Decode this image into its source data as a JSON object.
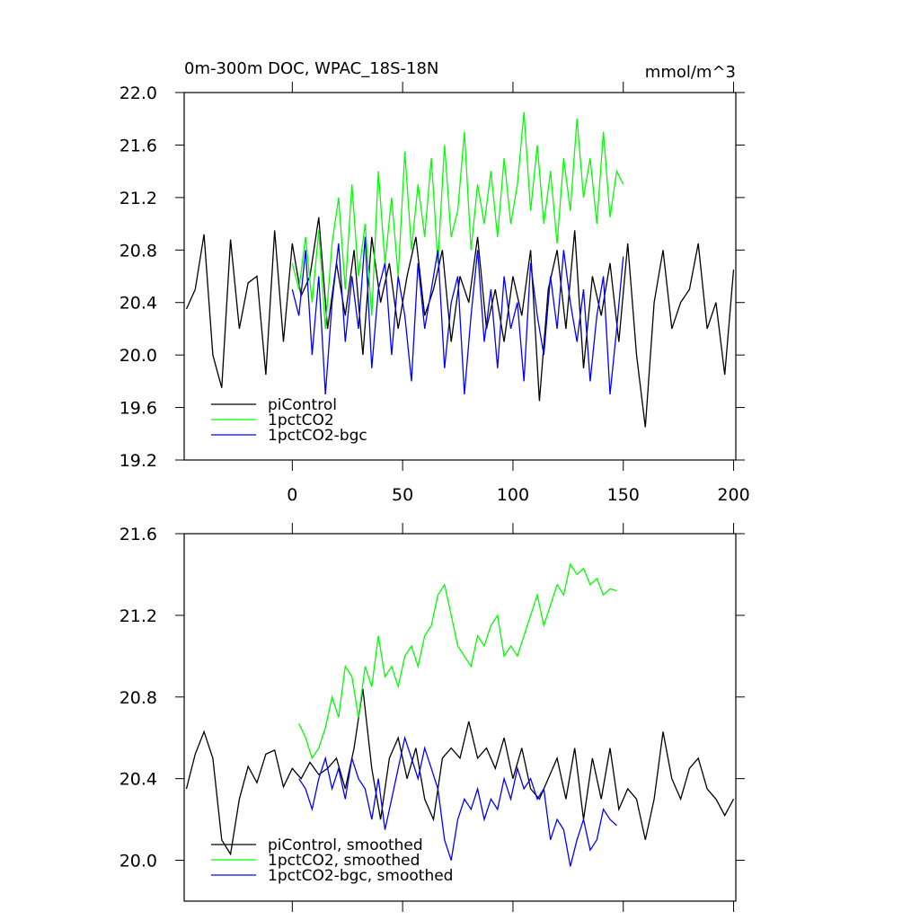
{
  "chart_data": [
    {
      "type": "line",
      "left_title": "0m-300m DOC, WPAC_18S-18N",
      "right_title": "mmol/m^3",
      "xlim": [
        -49,
        201
      ],
      "xticks": [
        0,
        50,
        100,
        150,
        200
      ],
      "ylim": [
        19.2,
        22.0
      ],
      "yticks": [
        19.2,
        19.6,
        {
          "value": 20.0,
          "label": "20.0"
        },
        20.4,
        20.8,
        21.2,
        21.6,
        {
          "value": 22.0,
          "label": "22.0"
        }
      ],
      "legend": "lower left",
      "series": [
        {
          "name": "piControl",
          "color": "#000000",
          "x": [
            -48,
            -44,
            -40,
            -36,
            -32,
            -28,
            -24,
            -20,
            -16,
            -12,
            -8,
            -4,
            0,
            4,
            8,
            12,
            16,
            20,
            24,
            28,
            32,
            36,
            40,
            44,
            48,
            52,
            56,
            60,
            64,
            68,
            72,
            76,
            80,
            84,
            88,
            92,
            96,
            100,
            104,
            108,
            112,
            116,
            120,
            124,
            128,
            132,
            136,
            140,
            144,
            148,
            152,
            156,
            160,
            164,
            168,
            172,
            176,
            180,
            184,
            188,
            192,
            196,
            200
          ],
          "values": [
            20.35,
            20.5,
            20.92,
            20.0,
            19.75,
            20.88,
            20.2,
            20.55,
            20.6,
            19.85,
            20.95,
            20.1,
            20.85,
            20.45,
            20.6,
            21.05,
            20.2,
            20.7,
            20.3,
            20.8,
            20.0,
            20.9,
            20.4,
            20.7,
            20.2,
            20.6,
            20.9,
            20.3,
            20.5,
            20.8,
            20.1,
            20.6,
            20.4,
            20.9,
            20.2,
            20.5,
            20.1,
            20.6,
            20.3,
            20.8,
            19.65,
            20.5,
            20.8,
            20.2,
            20.95,
            19.9,
            20.6,
            20.3,
            20.7,
            20.1,
            20.85,
            20.0,
            19.45,
            20.4,
            20.8,
            20.2,
            20.4,
            20.5,
            20.85,
            20.2,
            20.4,
            19.85,
            20.65
          ]
        },
        {
          "name": "1pctCO2",
          "color": "#00ff00",
          "x": [
            0,
            3,
            6,
            9,
            12,
            15,
            18,
            21,
            24,
            27,
            30,
            33,
            36,
            39,
            42,
            45,
            48,
            51,
            54,
            57,
            60,
            63,
            66,
            69,
            72,
            75,
            78,
            81,
            84,
            87,
            90,
            93,
            96,
            99,
            102,
            105,
            108,
            111,
            114,
            117,
            120,
            123,
            126,
            129,
            132,
            135,
            138,
            141,
            144,
            147,
            150
          ],
          "values": [
            20.7,
            20.5,
            20.9,
            20.4,
            20.95,
            20.2,
            20.85,
            21.2,
            20.5,
            21.3,
            20.6,
            21.0,
            20.3,
            21.4,
            20.7,
            21.2,
            20.6,
            21.55,
            20.8,
            21.3,
            20.9,
            21.5,
            20.7,
            21.6,
            20.9,
            21.1,
            21.7,
            20.8,
            21.3,
            21.0,
            21.4,
            20.9,
            21.5,
            21.0,
            21.3,
            21.85,
            21.1,
            21.6,
            21.0,
            21.4,
            20.85,
            21.5,
            21.1,
            21.8,
            21.2,
            21.5,
            21.0,
            21.7,
            21.05,
            21.4,
            21.3
          ]
        },
        {
          "name": "1pctCO2-bgc",
          "color": "#0000ff",
          "x": [
            0,
            3,
            6,
            9,
            12,
            15,
            18,
            21,
            24,
            27,
            30,
            33,
            36,
            39,
            42,
            45,
            48,
            51,
            54,
            57,
            60,
            63,
            66,
            69,
            72,
            75,
            78,
            81,
            84,
            87,
            90,
            93,
            96,
            99,
            102,
            105,
            108,
            111,
            114,
            117,
            120,
            123,
            126,
            129,
            132,
            135,
            138,
            141,
            144,
            147,
            150
          ],
          "values": [
            20.5,
            20.3,
            20.8,
            20.0,
            20.6,
            19.7,
            20.4,
            20.85,
            20.1,
            20.6,
            20.2,
            20.9,
            19.9,
            20.5,
            20.7,
            20.0,
            20.6,
            20.3,
            19.8,
            20.7,
            20.2,
            20.5,
            20.8,
            19.9,
            20.4,
            20.6,
            19.7,
            20.3,
            20.8,
            20.1,
            20.5,
            19.9,
            20.6,
            20.2,
            20.4,
            19.8,
            20.7,
            20.3,
            20.0,
            20.6,
            20.2,
            20.8,
            20.4,
            20.1,
            20.5,
            19.8,
            20.3,
            20.6,
            19.7,
            20.2,
            20.75
          ]
        }
      ]
    },
    {
      "type": "line",
      "xlim": [
        -49,
        201
      ],
      "xticks": [
        0,
        50,
        100,
        150,
        200
      ],
      "ylim": [
        19.8,
        21.6
      ],
      "yticks": [
        {
          "value": 20.0,
          "label": "20.0"
        },
        20.4,
        20.8,
        21.2,
        21.6
      ],
      "legend": "lower left",
      "series": [
        {
          "name": "piControl, smoothed",
          "color": "#000000",
          "x": [
            -48,
            -44,
            -40,
            -36,
            -32,
            -28,
            -24,
            -20,
            -16,
            -12,
            -8,
            -4,
            0,
            4,
            8,
            12,
            16,
            20,
            24,
            28,
            32,
            36,
            40,
            44,
            48,
            52,
            56,
            60,
            64,
            68,
            72,
            76,
            80,
            84,
            88,
            92,
            96,
            100,
            104,
            108,
            112,
            116,
            120,
            124,
            128,
            132,
            136,
            140,
            144,
            148,
            152,
            156,
            160,
            164,
            168,
            172,
            176,
            180,
            184,
            188,
            192,
            196,
            200
          ],
          "values": [
            20.35,
            20.52,
            20.63,
            20.5,
            20.1,
            20.03,
            20.3,
            20.46,
            20.38,
            20.52,
            20.54,
            20.36,
            20.45,
            20.4,
            20.48,
            20.42,
            20.45,
            20.5,
            20.35,
            20.55,
            20.84,
            20.45,
            20.2,
            20.5,
            20.6,
            20.4,
            20.55,
            20.3,
            20.2,
            20.5,
            20.55,
            20.5,
            20.68,
            20.5,
            20.55,
            20.45,
            20.6,
            20.4,
            20.55,
            20.35,
            20.3,
            20.4,
            20.5,
            20.3,
            20.55,
            20.2,
            20.5,
            20.3,
            20.55,
            20.25,
            20.35,
            20.3,
            20.1,
            20.3,
            20.63,
            20.4,
            20.3,
            20.45,
            20.5,
            20.35,
            20.3,
            20.22,
            20.3
          ]
        },
        {
          "name": "1pctCO2, smoothed",
          "color": "#00ff00",
          "x": [
            3,
            6,
            9,
            12,
            15,
            18,
            21,
            24,
            27,
            30,
            33,
            36,
            39,
            42,
            45,
            48,
            51,
            54,
            57,
            60,
            63,
            66,
            69,
            72,
            75,
            78,
            81,
            84,
            87,
            90,
            93,
            96,
            99,
            102,
            105,
            108,
            111,
            114,
            117,
            120,
            123,
            126,
            129,
            132,
            135,
            138,
            141,
            144,
            147
          ],
          "values": [
            20.67,
            20.6,
            20.5,
            20.55,
            20.65,
            20.8,
            20.7,
            20.95,
            20.9,
            20.7,
            20.95,
            20.85,
            21.1,
            20.9,
            20.95,
            20.85,
            21.0,
            21.05,
            20.95,
            21.1,
            21.15,
            21.3,
            21.35,
            21.2,
            21.05,
            21.0,
            20.95,
            21.1,
            21.05,
            21.15,
            21.2,
            21.0,
            21.05,
            21.0,
            21.1,
            21.2,
            21.3,
            21.15,
            21.25,
            21.35,
            21.3,
            21.45,
            21.4,
            21.43,
            21.35,
            21.38,
            21.3,
            21.33,
            21.32
          ]
        },
        {
          "name": "1pctCO2-bgc, smoothed",
          "color": "#0000ff",
          "x": [
            3,
            6,
            9,
            12,
            15,
            18,
            21,
            24,
            27,
            30,
            33,
            36,
            39,
            42,
            45,
            48,
            51,
            54,
            57,
            60,
            63,
            66,
            69,
            72,
            75,
            78,
            81,
            84,
            87,
            90,
            93,
            96,
            99,
            102,
            105,
            108,
            111,
            114,
            117,
            120,
            123,
            126,
            129,
            132,
            135,
            138,
            141,
            144,
            147
          ],
          "values": [
            20.4,
            20.35,
            20.25,
            20.4,
            20.5,
            20.35,
            20.45,
            20.3,
            20.5,
            20.4,
            20.35,
            20.2,
            20.4,
            20.15,
            20.3,
            20.45,
            20.6,
            20.5,
            20.4,
            20.55,
            20.45,
            20.35,
            20.1,
            20.0,
            20.2,
            20.3,
            20.25,
            20.35,
            20.2,
            20.3,
            20.25,
            20.4,
            20.3,
            20.45,
            20.35,
            20.4,
            20.3,
            20.35,
            20.1,
            20.2,
            20.15,
            19.97,
            20.1,
            20.2,
            20.05,
            20.1,
            20.25,
            20.2,
            20.17
          ]
        }
      ]
    }
  ]
}
